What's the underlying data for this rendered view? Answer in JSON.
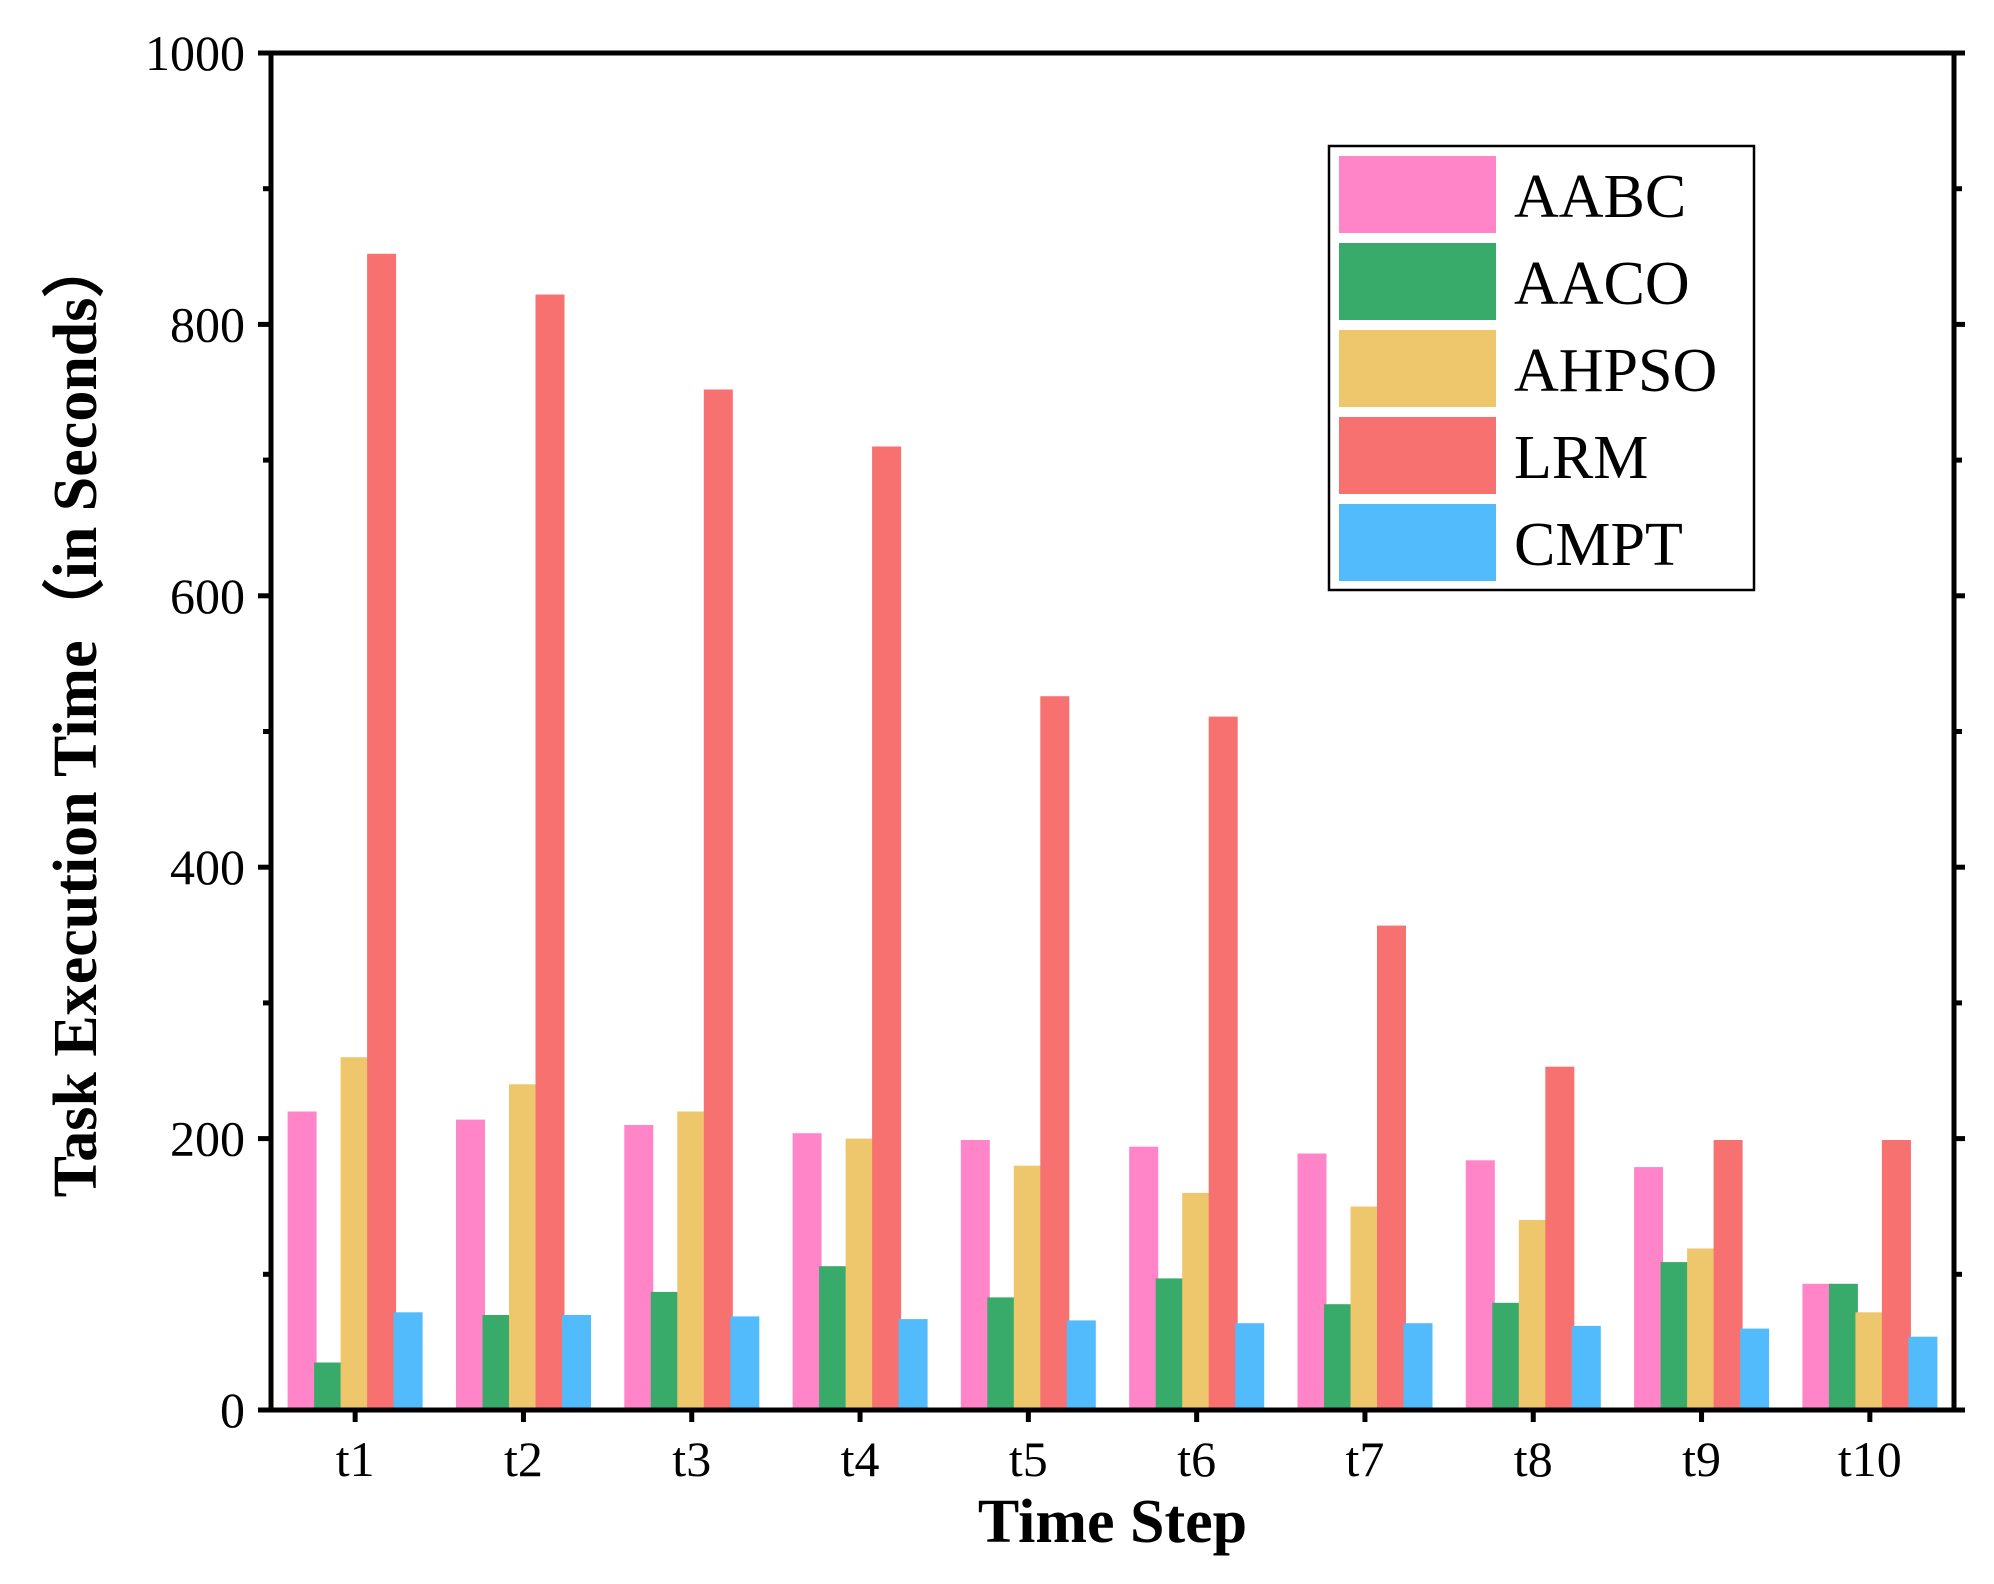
{
  "chart_data": {
    "type": "bar",
    "title": "",
    "xlabel": "Time Step",
    "ylabel": "Task Execution Time（in Seconds）",
    "ylim": [
      0,
      1000
    ],
    "yticks": [
      0,
      200,
      400,
      600,
      800,
      1000
    ],
    "yticks_minor": [
      100,
      300,
      500,
      700,
      900
    ],
    "grid": false,
    "legend_position": "top-right",
    "categories": [
      "t1",
      "t2",
      "t3",
      "t4",
      "t5",
      "t6",
      "t7",
      "t8",
      "t9",
      "t10"
    ],
    "series": [
      {
        "name": "AABC",
        "color": "#FF84C8",
        "values": [
          220,
          214,
          210,
          204,
          199,
          194,
          189,
          184,
          179,
          93
        ]
      },
      {
        "name": "AACO",
        "color": "#38AA6A",
        "values": [
          35,
          70,
          87,
          106,
          83,
          97,
          78,
          79,
          109,
          93
        ]
      },
      {
        "name": "AHPSO",
        "color": "#EEC66B",
        "values": [
          260,
          240,
          220,
          200,
          180,
          160,
          150,
          140,
          119,
          72
        ]
      },
      {
        "name": "LRM",
        "color": "#F87171",
        "values": [
          852,
          822,
          752,
          710,
          526,
          511,
          357,
          253,
          199,
          199
        ]
      },
      {
        "name": "CMPT",
        "color": "#52BBFC",
        "values": [
          72,
          70,
          69,
          67,
          66,
          64,
          64,
          62,
          60,
          54
        ]
      }
    ]
  }
}
